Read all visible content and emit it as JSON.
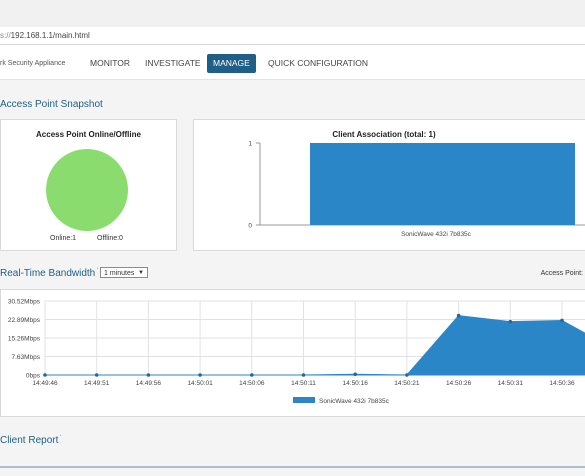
{
  "browser": {
    "url_scheme": "s://",
    "url_rest": "192.168.1.1/main.html"
  },
  "header": {
    "brand": "rk Security Appliance",
    "nav": [
      {
        "label": "MONITOR"
      },
      {
        "label": "INVESTIGATE"
      },
      {
        "label": "MANAGE"
      },
      {
        "label": "QUICK CONFIGURATION"
      }
    ]
  },
  "sections": {
    "snapshot_title": "Access Point Snapshot",
    "bandwidth_title": "Real-Time Bandwidth",
    "client_report_title": "Client Report"
  },
  "bandwidth_controls": {
    "interval_selected": "1 minutes",
    "access_point_label": "Access Point:"
  },
  "colors": {
    "accent": "#1f5f87",
    "online_green": "#8bdc6f",
    "series_blue": "#2a86c6"
  },
  "chart_data": [
    {
      "type": "pie",
      "title": "Access Point Online/Offline",
      "slices": [
        {
          "name": "Online",
          "value": 1
        },
        {
          "name": "Offline",
          "value": 0
        }
      ],
      "legend_text": [
        "Online:1",
        "Offline:0"
      ]
    },
    {
      "type": "bar",
      "title": "Client Association (total: 1)",
      "categories": [
        "SonicWave 432i 7b835c"
      ],
      "values": [
        1
      ],
      "ylim": [
        0,
        1
      ],
      "yticks": [
        "0",
        "1"
      ]
    },
    {
      "type": "area",
      "title": "",
      "x": [
        "14:49:46",
        "14:49:51",
        "14:49:56",
        "14:50:01",
        "14:50:06",
        "14:50:11",
        "14:50:16",
        "14:50:21",
        "14:50:26",
        "14:50:31",
        "14:50:36"
      ],
      "series": [
        {
          "name": "SonicWave 432i 7b835c",
          "values": [
            0,
            0,
            0,
            0,
            0,
            0,
            0.3,
            0,
            24.5,
            22.0,
            22.5
          ]
        }
      ],
      "ytick_values": [
        0,
        7.63,
        15.26,
        22.89,
        30.52
      ],
      "ytick_labels": [
        "0bps",
        "7.63Mbps",
        "15.26Mbps",
        "22.89Mbps",
        "30.52Mbps"
      ],
      "ylim": [
        0,
        30.52
      ],
      "legend": "bottom-center",
      "grid": true
    }
  ]
}
